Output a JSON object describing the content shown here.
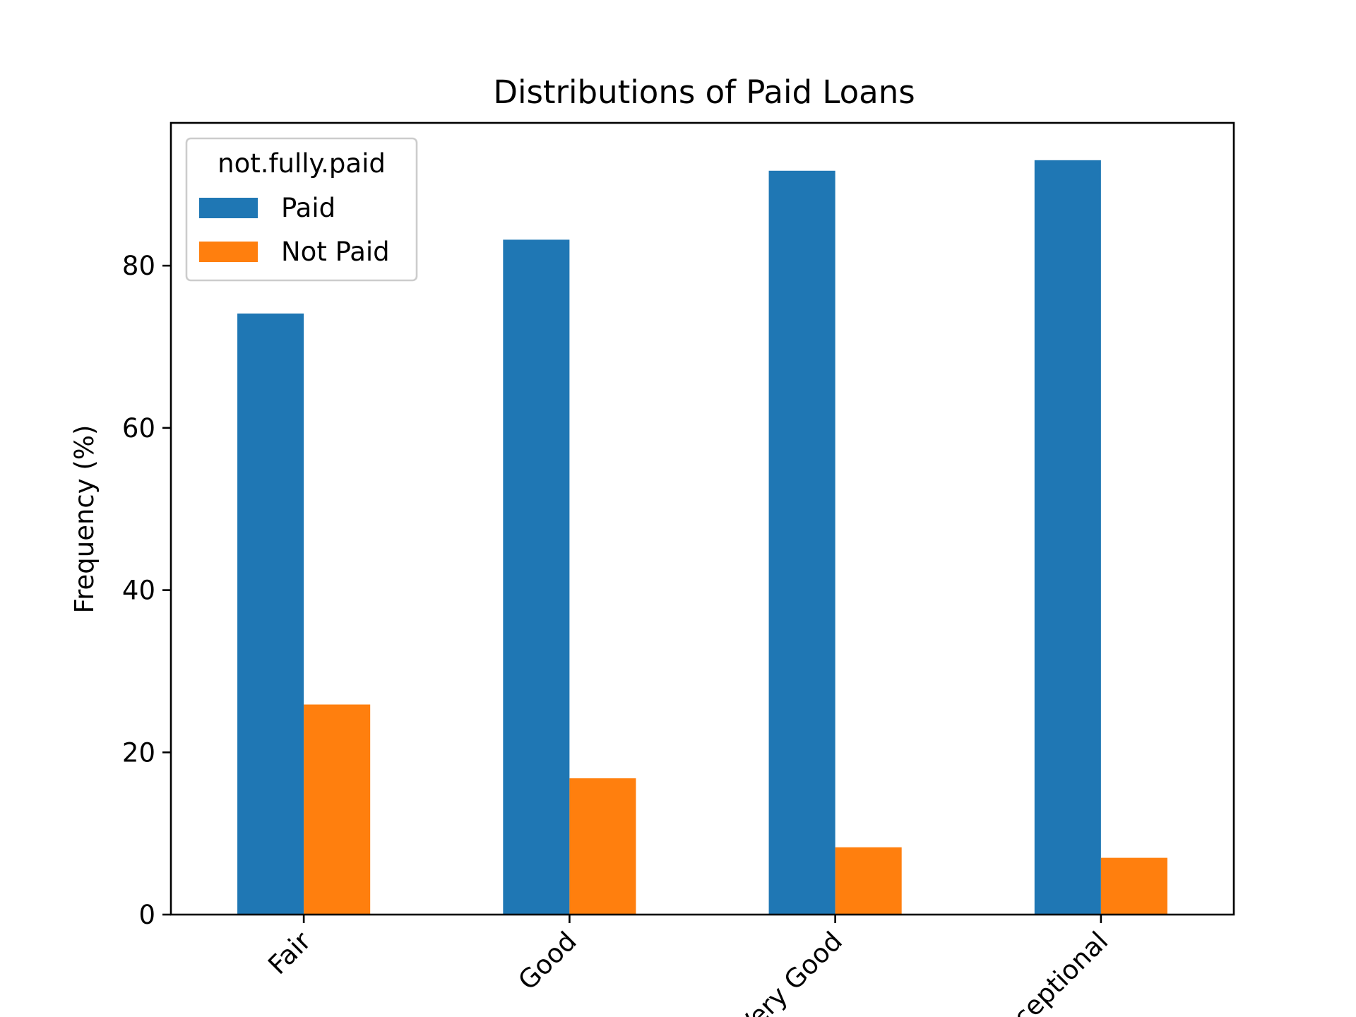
{
  "chart_data": {
    "type": "bar",
    "title": "Distributions of Paid Loans",
    "xlabel": "",
    "ylabel": "Frequency (%)",
    "categories": [
      "Fair",
      "Good",
      "Very Good",
      "Exceptional"
    ],
    "series": [
      {
        "name": "Paid",
        "values": [
          74.1,
          83.2,
          91.7,
          93.0
        ],
        "color": "#1f77b4"
      },
      {
        "name": "Not Paid",
        "values": [
          25.9,
          16.8,
          8.3,
          7.0
        ],
        "color": "#ff7f0e"
      }
    ],
    "ylim": [
      0,
      97.6
    ],
    "yticks": [
      0,
      20,
      40,
      60,
      80
    ],
    "legend": {
      "title": "not.fully.paid",
      "placement": "top-left"
    },
    "grid": false
  }
}
